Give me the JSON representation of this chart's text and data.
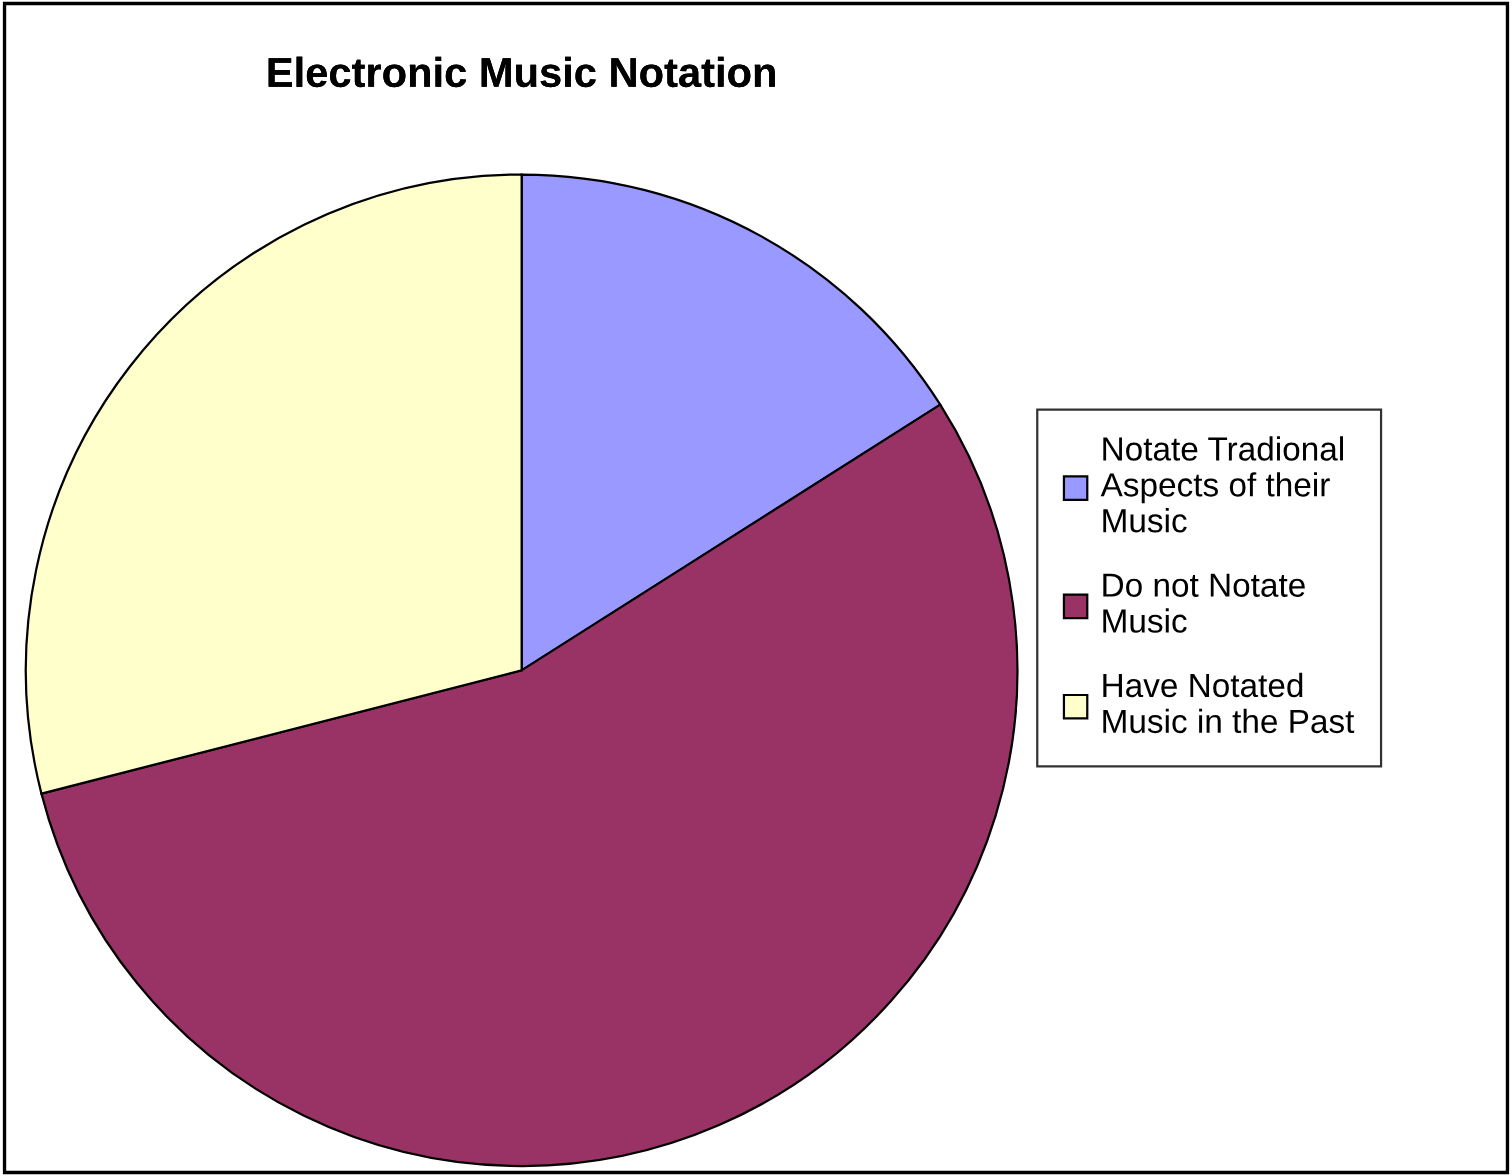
{
  "chart_data": {
    "type": "pie",
    "title": "Electronic Music Notation",
    "categories": [
      "Notate Tradional Aspects of their Music",
      "Do not Notate Music",
      "Have Notated Music in the Past"
    ],
    "values": [
      16,
      55,
      29
    ],
    "colors": [
      "#9999ff",
      "#993366",
      "#ffffcc"
    ],
    "legend": "right"
  }
}
